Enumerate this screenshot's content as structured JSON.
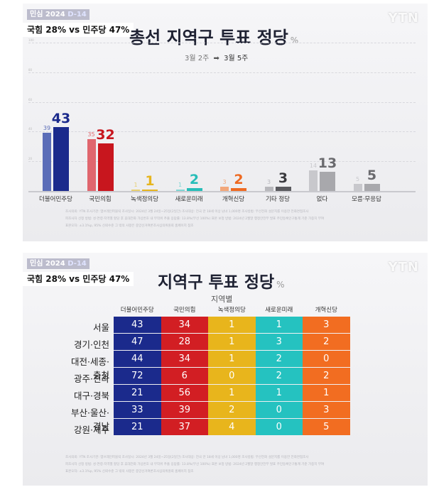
{
  "panel1": {
    "badge": {
      "prefix": "민심 2024",
      "dday": "D-14"
    },
    "headline": "국힘 28% vs 민주당 47%",
    "logo": "YTN",
    "title": "총선 지역구 투표 정당",
    "title_unit": "%",
    "period_from": "3월 2주",
    "period_arrow": "➡",
    "period_to": "3월 5주",
    "source_lines": [
      "조사의뢰: YTN   조사기관: 엠브레인퍼블릭   조사일시: 2024년 3월 24일~25일(2일간)   조사대상: 전국 만 18세 이상 남녀 1,000명   조사방법: 무선전화 설문지를 이용한 전화면접조사",
      "피조사자 선정 방법: 성·연령·지역별 할당 후 휴대전화 가상번호 내 무작위 추출   응답률: 13.8%(무선 100%)   표본 보정 방법: 2024년 2월말 행정안전부 발표 주민등록인구통계 기준 가중치 부여",
      "표본오차: ±3.1%p, 95% 신뢰수준   그 밖의 사항은 중앙선거여론조사심의위원회 홈페이지 참조"
    ]
  },
  "panel2": {
    "badge": {
      "prefix": "민심 2024",
      "dday": "D-14"
    },
    "headline": "국힘 28% vs 민주당 47%",
    "logo": "YTN",
    "title": "지역구 투표 정당",
    "title_unit": "%",
    "subtitle": "지역별",
    "source_lines": [
      "조사의뢰: YTN   조사기관: 엠브레인퍼블릭   조사일시: 2024년 3월 24일~25일(2일간)   조사대상: 전국 만 18세 이상 남녀 1,000명   조사방법: 무선전화 설문지를 이용한 전화면접조사",
      "피조사자 선정 방법: 성·연령·지역별 할당 후 휴대전화 가상번호 내 무작위 추출   응답률: 13.8%(무선 100%)   표본 보정 방법: 2024년 2월말 행정안전부 발표 주민등록인구통계 기준 가중치 부여",
      "표본오차: ±3.1%p, 95% 신뢰수준   그 밖의 사항은 중앙선거여론조사심의위원회 홈페이지 참조"
    ]
  },
  "chart_data": [
    {
      "type": "bar",
      "title": "총선 지역구 투표 정당",
      "categories": [
        "더불어민주당",
        "국민의힘",
        "녹색정의당",
        "새로운미래",
        "개혁신당",
        "기타 정당",
        "없다",
        "모름·무응답"
      ],
      "series": [
        {
          "name": "3월 2주",
          "values": [
            39,
            35,
            1,
            1,
            3,
            3,
            14,
            5
          ]
        },
        {
          "name": "3월 5주",
          "values": [
            43,
            32,
            1,
            2,
            2,
            3,
            13,
            5
          ]
        }
      ],
      "ylim": [
        0,
        100
      ],
      "grid": true,
      "colors_prev": [
        "#5b6db8",
        "#e0666e",
        "#e8d070",
        "#7fd6d4",
        "#f2a77a",
        "#b8b8bc",
        "#c8c8cc",
        "#c8c8cc"
      ],
      "colors_cur": [
        "#1b2a8c",
        "#c8161e",
        "#e6b51e",
        "#27bdb8",
        "#ee6a22",
        "#5a5a5e",
        "#a8a8ac",
        "#a8a8ac"
      ],
      "label_colors": [
        "#1b2a8c",
        "#c8161e",
        "#e6b51e",
        "#27bdb8",
        "#ee6a22",
        "#3a3a3e",
        "#6a6a6e",
        "#6a6a6e"
      ]
    },
    {
      "type": "table",
      "title": "지역구 투표 정당",
      "subtitle": "지역별",
      "columns": [
        "더불어민주당",
        "국민의힘",
        "녹색정의당",
        "새로운미래",
        "개혁신당"
      ],
      "column_colors": [
        "#1b2a8c",
        "#d21e23",
        "#e8b51c",
        "#25c2c0",
        "#f26d21"
      ],
      "rows": [
        {
          "region": "서울",
          "values": [
            43,
            34,
            1,
            1,
            3
          ]
        },
        {
          "region": "경기·인천",
          "values": [
            47,
            28,
            1,
            3,
            2
          ]
        },
        {
          "region": "대전·세종·충청",
          "values": [
            44,
            34,
            1,
            2,
            0
          ]
        },
        {
          "region": "광주·전라",
          "values": [
            72,
            6,
            0,
            2,
            2
          ]
        },
        {
          "region": "대구·경북",
          "values": [
            21,
            56,
            1,
            1,
            1
          ]
        },
        {
          "region": "부산·울산·경남",
          "values": [
            33,
            39,
            2,
            0,
            3
          ]
        },
        {
          "region": "강원·제주",
          "values": [
            21,
            37,
            4,
            0,
            5
          ]
        }
      ]
    }
  ]
}
